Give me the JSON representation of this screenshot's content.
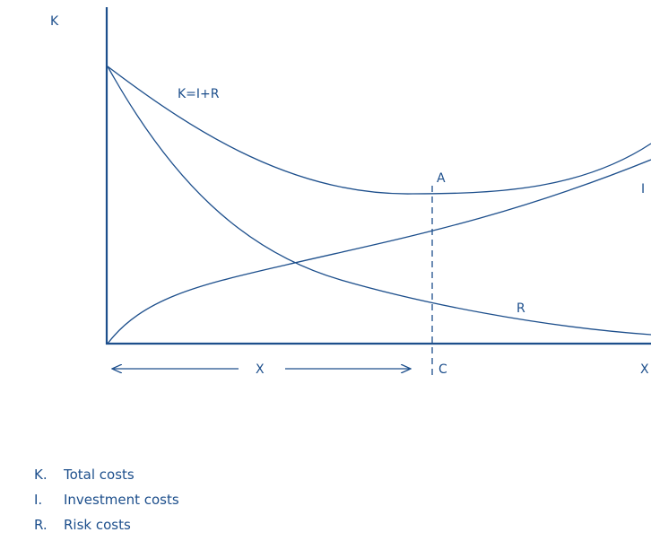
{
  "diagram": {
    "axis_y_label": "K",
    "axis_x_label": "X",
    "total_curve_label": "K=I+R",
    "investment_curve_label": "I",
    "risk_curve_label": "R",
    "optimum_point_label": "A",
    "optimum_x_label": "C",
    "range_label": "X",
    "colors": {
      "line": "#1d4f8c",
      "background": "#ffffff"
    }
  },
  "legend": [
    {
      "key": "K.",
      "text": "Total costs"
    },
    {
      "key": "I.",
      "text": "Investment costs"
    },
    {
      "key": "R.",
      "text": "Risk costs"
    }
  ]
}
